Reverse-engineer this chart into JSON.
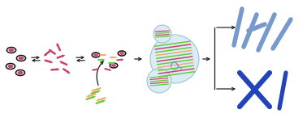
{
  "bg_color": "#ffffff",
  "monomer_fill": "#c94070",
  "monomer_outline": "#111111",
  "peptide_color": "#c94070",
  "green_color": "#66cc33",
  "peach_color": "#f5a87a",
  "fiber_dark_blue": "#2244bb",
  "fiber_light_blue": "#7799cc",
  "circle_face": "#daedf5",
  "circle_edge": "#99bbcc",
  "arrow_color": "#1a1a1a",
  "eq_arrow_color": "#222222"
}
